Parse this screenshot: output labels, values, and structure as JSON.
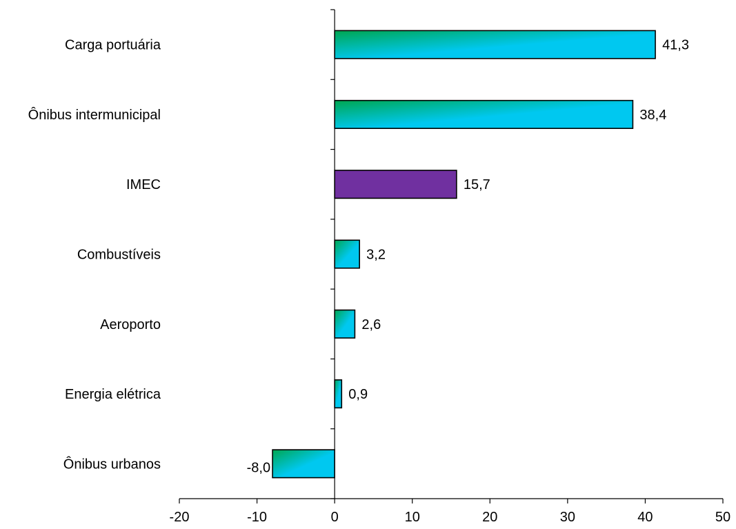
{
  "chart_data": {
    "type": "bar",
    "orientation": "horizontal",
    "categories": [
      "Carga portuária",
      "Ônibus intermunicipal",
      "IMEC",
      "Combustíveis",
      "Aeroporto",
      "Energia elétrica",
      "Ônibus urbanos"
    ],
    "values": [
      41.3,
      38.4,
      15.7,
      3.2,
      2.6,
      0.9,
      -8.0
    ],
    "value_labels": [
      "41,3",
      "38,4",
      "15,7",
      "3,2",
      "2,6",
      "0,9",
      "-8,0"
    ],
    "highlight_category": "IMEC",
    "colors": {
      "gradient_start": "#00a651",
      "gradient_end": "#00c8f0",
      "highlight": "#7030a0"
    },
    "xlim": [
      -20,
      50
    ],
    "xticks": [
      -20,
      -10,
      0,
      10,
      20,
      30,
      40,
      50
    ],
    "xtick_labels": [
      "-20",
      "-10",
      "0",
      "10",
      "20",
      "30",
      "40",
      "50"
    ],
    "grid": false,
    "legend": "none"
  }
}
